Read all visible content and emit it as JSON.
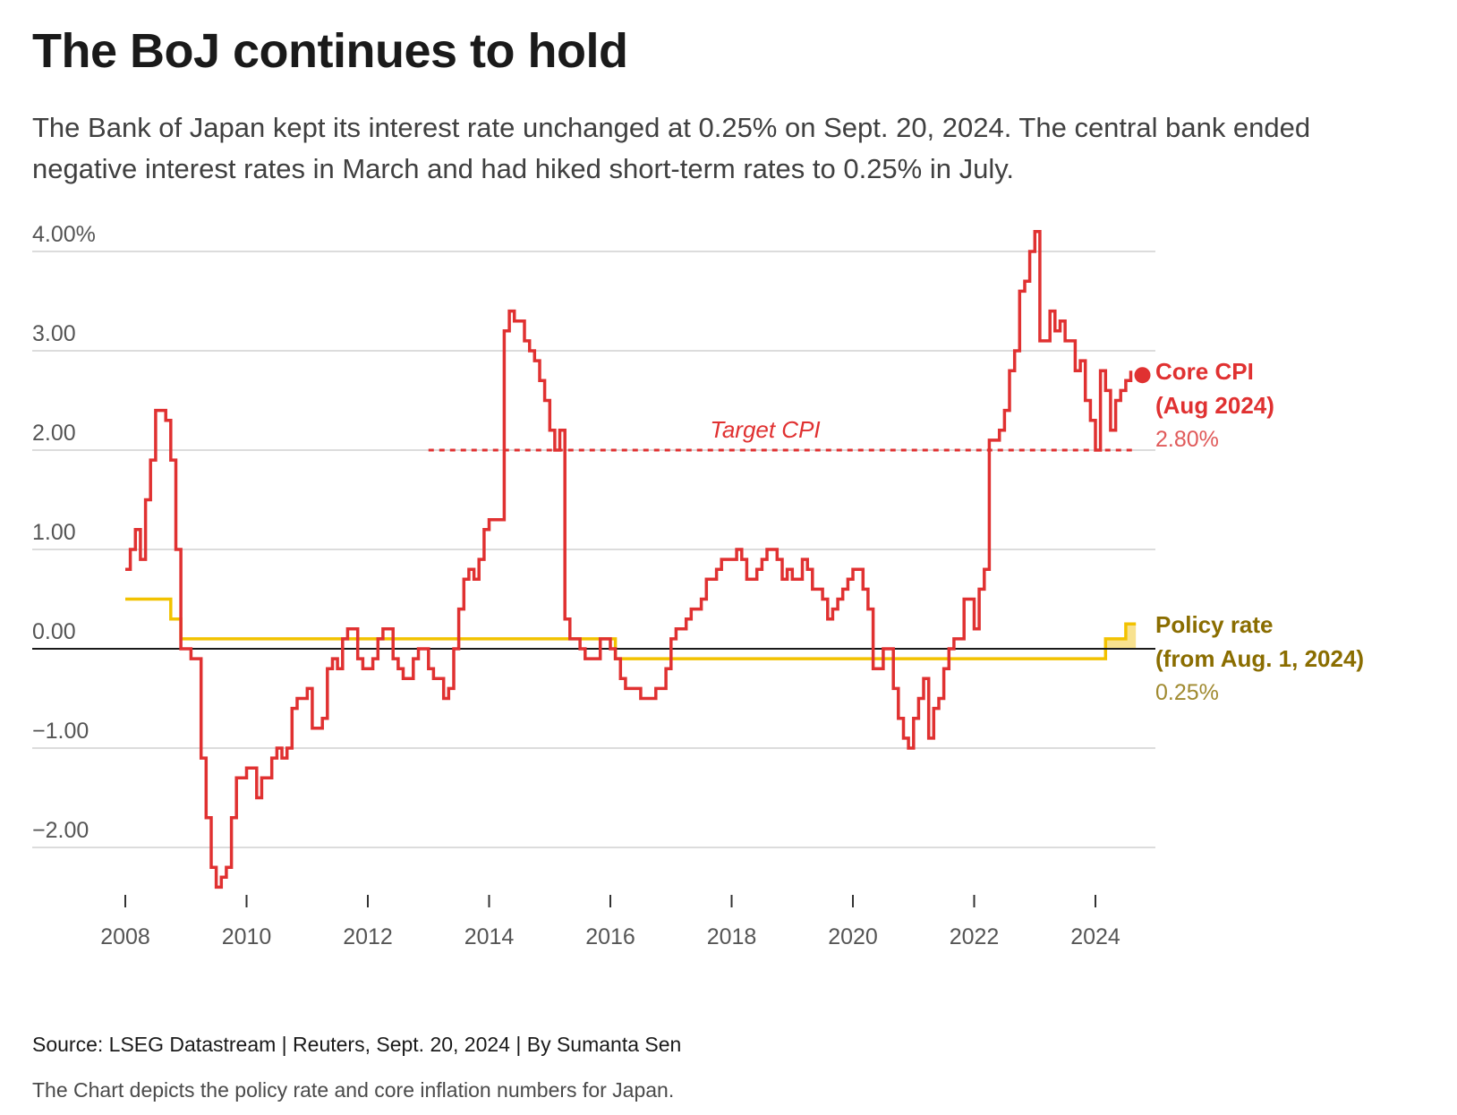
{
  "header": {
    "title": "The BoJ continues to hold",
    "subtitle": "The Bank of Japan kept its interest rate unchanged at 0.25% on Sept. 20, 2024. The central bank ended negative interest rates in March and had hiked short-term rates to 0.25% in July."
  },
  "footer": {
    "source": "Source: LSEG Datastream | Reuters, Sept. 20, 2024 | By Sumanta Sen",
    "caption": "The Chart depicts the policy rate and core inflation numbers for Japan."
  },
  "chart_data": {
    "type": "line",
    "step": true,
    "y_ticks": [
      {
        "value": 4,
        "label": "4.00%"
      },
      {
        "value": 3,
        "label": "3.00"
      },
      {
        "value": 2,
        "label": "2.00"
      },
      {
        "value": 1,
        "label": "1.00"
      },
      {
        "value": 0,
        "label": "0.00"
      },
      {
        "value": -1,
        "label": "−1.00"
      },
      {
        "value": -2,
        "label": "−2.00"
      }
    ],
    "x_ticks": [
      "2008",
      "2010",
      "2012",
      "2014",
      "2016",
      "2018",
      "2020",
      "2022",
      "2024"
    ],
    "ylim": [
      -2.5,
      4.3
    ],
    "xlim": [
      "2007-06",
      "2026-08"
    ],
    "grid": true,
    "colors": {
      "core_cpi": "#e03131",
      "policy_rate": "#f2c200",
      "policy_label": "#8a6d00",
      "target": "#e03131",
      "grid": "#d0d0d0",
      "zero": "#1a1a1a"
    },
    "target": {
      "label": "Target CPI",
      "value": 2.0,
      "from": "2013-01",
      "to": "2024-09"
    },
    "annotations": {
      "cpi_title_1": "Core CPI",
      "cpi_title_2": "(Aug 2024)",
      "cpi_value": "2.80%",
      "policy_title_1": "Policy rate",
      "policy_title_2": "(from Aug. 1, 2024)",
      "policy_value": "0.25%"
    },
    "series": [
      {
        "key": "core_cpi",
        "points": [
          [
            "2008-01",
            0.8
          ],
          [
            "2008-02",
            1.0
          ],
          [
            "2008-03",
            1.2
          ],
          [
            "2008-04",
            0.9
          ],
          [
            "2008-05",
            1.5
          ],
          [
            "2008-06",
            1.9
          ],
          [
            "2008-07",
            2.4
          ],
          [
            "2008-09",
            2.3
          ],
          [
            "2008-10",
            1.9
          ],
          [
            "2008-11",
            1.0
          ],
          [
            "2008-12",
            0.0
          ],
          [
            "2009-02",
            -0.1
          ],
          [
            "2009-04",
            -1.1
          ],
          [
            "2009-05",
            -1.7
          ],
          [
            "2009-06",
            -2.2
          ],
          [
            "2009-07",
            -2.4
          ],
          [
            "2009-08",
            -2.3
          ],
          [
            "2009-09",
            -2.2
          ],
          [
            "2009-10",
            -1.7
          ],
          [
            "2009-11",
            -1.3
          ],
          [
            "2010-01",
            -1.2
          ],
          [
            "2010-03",
            -1.5
          ],
          [
            "2010-04",
            -1.3
          ],
          [
            "2010-06",
            -1.1
          ],
          [
            "2010-07",
            -1.0
          ],
          [
            "2010-08",
            -1.1
          ],
          [
            "2010-09",
            -1.0
          ],
          [
            "2010-10",
            -0.6
          ],
          [
            "2010-11",
            -0.5
          ],
          [
            "2011-01",
            -0.4
          ],
          [
            "2011-02",
            -0.8
          ],
          [
            "2011-04",
            -0.7
          ],
          [
            "2011-05",
            -0.2
          ],
          [
            "2011-06",
            -0.1
          ],
          [
            "2011-07",
            -0.2
          ],
          [
            "2011-08",
            0.1
          ],
          [
            "2011-09",
            0.2
          ],
          [
            "2011-11",
            -0.1
          ],
          [
            "2011-12",
            -0.2
          ],
          [
            "2012-02",
            -0.1
          ],
          [
            "2012-03",
            0.1
          ],
          [
            "2012-04",
            0.2
          ],
          [
            "2012-06",
            -0.1
          ],
          [
            "2012-07",
            -0.2
          ],
          [
            "2012-08",
            -0.3
          ],
          [
            "2012-10",
            -0.1
          ],
          [
            "2012-11",
            0.0
          ],
          [
            "2013-01",
            -0.2
          ],
          [
            "2013-02",
            -0.3
          ],
          [
            "2013-04",
            -0.5
          ],
          [
            "2013-05",
            -0.4
          ],
          [
            "2013-06",
            0.0
          ],
          [
            "2013-07",
            0.4
          ],
          [
            "2013-08",
            0.7
          ],
          [
            "2013-09",
            0.8
          ],
          [
            "2013-10",
            0.7
          ],
          [
            "2013-11",
            0.9
          ],
          [
            "2013-12",
            1.2
          ],
          [
            "2014-01",
            1.3
          ],
          [
            "2014-04",
            3.2
          ],
          [
            "2014-05",
            3.4
          ],
          [
            "2014-06",
            3.3
          ],
          [
            "2014-08",
            3.1
          ],
          [
            "2014-09",
            3.0
          ],
          [
            "2014-10",
            2.9
          ],
          [
            "2014-11",
            2.7
          ],
          [
            "2014-12",
            2.5
          ],
          [
            "2015-01",
            2.2
          ],
          [
            "2015-02",
            2.0
          ],
          [
            "2015-03",
            2.2
          ],
          [
            "2015-04",
            0.3
          ],
          [
            "2015-05",
            0.1
          ],
          [
            "2015-07",
            0.0
          ],
          [
            "2015-08",
            -0.1
          ],
          [
            "2015-11",
            0.1
          ],
          [
            "2016-01",
            0.0
          ],
          [
            "2016-02",
            -0.1
          ],
          [
            "2016-03",
            -0.3
          ],
          [
            "2016-04",
            -0.4
          ],
          [
            "2016-07",
            -0.5
          ],
          [
            "2016-10",
            -0.4
          ],
          [
            "2016-12",
            -0.2
          ],
          [
            "2017-01",
            0.1
          ],
          [
            "2017-02",
            0.2
          ],
          [
            "2017-04",
            0.3
          ],
          [
            "2017-05",
            0.4
          ],
          [
            "2017-07",
            0.5
          ],
          [
            "2017-08",
            0.7
          ],
          [
            "2017-10",
            0.8
          ],
          [
            "2017-11",
            0.9
          ],
          [
            "2018-02",
            1.0
          ],
          [
            "2018-03",
            0.9
          ],
          [
            "2018-04",
            0.7
          ],
          [
            "2018-06",
            0.8
          ],
          [
            "2018-07",
            0.9
          ],
          [
            "2018-08",
            1.0
          ],
          [
            "2018-10",
            0.9
          ],
          [
            "2018-11",
            0.7
          ],
          [
            "2018-12",
            0.8
          ],
          [
            "2019-01",
            0.7
          ],
          [
            "2019-03",
            0.9
          ],
          [
            "2019-04",
            0.8
          ],
          [
            "2019-05",
            0.6
          ],
          [
            "2019-07",
            0.5
          ],
          [
            "2019-08",
            0.3
          ],
          [
            "2019-09",
            0.4
          ],
          [
            "2019-10",
            0.5
          ],
          [
            "2019-11",
            0.6
          ],
          [
            "2019-12",
            0.7
          ],
          [
            "2020-01",
            0.8
          ],
          [
            "2020-03",
            0.6
          ],
          [
            "2020-04",
            0.4
          ],
          [
            "2020-05",
            -0.2
          ],
          [
            "2020-07",
            0.0
          ],
          [
            "2020-09",
            -0.4
          ],
          [
            "2020-10",
            -0.7
          ],
          [
            "2020-11",
            -0.9
          ],
          [
            "2020-12",
            -1.0
          ],
          [
            "2021-01",
            -0.7
          ],
          [
            "2021-02",
            -0.5
          ],
          [
            "2021-03",
            -0.3
          ],
          [
            "2021-04",
            -0.9
          ],
          [
            "2021-05",
            -0.6
          ],
          [
            "2021-06",
            -0.5
          ],
          [
            "2021-07",
            -0.2
          ],
          [
            "2021-08",
            0.0
          ],
          [
            "2021-09",
            0.1
          ],
          [
            "2021-11",
            0.5
          ],
          [
            "2022-01",
            0.2
          ],
          [
            "2022-02",
            0.6
          ],
          [
            "2022-03",
            0.8
          ],
          [
            "2022-04",
            2.1
          ],
          [
            "2022-06",
            2.2
          ],
          [
            "2022-07",
            2.4
          ],
          [
            "2022-08",
            2.8
          ],
          [
            "2022-09",
            3.0
          ],
          [
            "2022-10",
            3.6
          ],
          [
            "2022-11",
            3.7
          ],
          [
            "2022-12",
            4.0
          ],
          [
            "2023-01",
            4.2
          ],
          [
            "2023-02",
            3.1
          ],
          [
            "2023-04",
            3.4
          ],
          [
            "2023-05",
            3.2
          ],
          [
            "2023-06",
            3.3
          ],
          [
            "2023-07",
            3.1
          ],
          [
            "2023-09",
            2.8
          ],
          [
            "2023-10",
            2.9
          ],
          [
            "2023-11",
            2.5
          ],
          [
            "2023-12",
            2.3
          ],
          [
            "2024-01",
            2.0
          ],
          [
            "2024-02",
            2.8
          ],
          [
            "2024-03",
            2.6
          ],
          [
            "2024-04",
            2.2
          ],
          [
            "2024-05",
            2.5
          ],
          [
            "2024-06",
            2.6
          ],
          [
            "2024-07",
            2.7
          ],
          [
            "2024-08",
            2.8
          ]
        ]
      },
      {
        "key": "policy_rate",
        "points": [
          [
            "2008-01",
            0.5
          ],
          [
            "2008-10",
            0.3
          ],
          [
            "2008-12",
            0.1
          ],
          [
            "2016-02",
            -0.1
          ],
          [
            "2024-03",
            0.1
          ],
          [
            "2024-07",
            0.25
          ],
          [
            "2024-09",
            0.25
          ]
        ]
      }
    ]
  }
}
